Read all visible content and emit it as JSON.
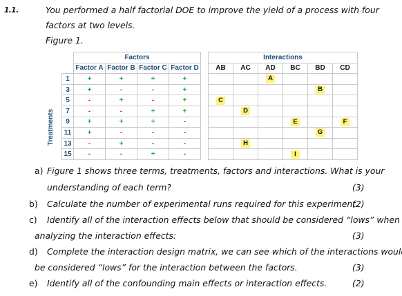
{
  "question_number": "1.1.",
  "intro_line1": "You performed a half factorial DOE to improve the yield of a process with four",
  "intro_line2": "factors at two levels.",
  "figure_label": "Figure 1.",
  "factors_table": {
    "group_header": "Factors",
    "columns": [
      "Factor A",
      "Factor B",
      "Factor C",
      "Factor D"
    ],
    "side_label": "Treatments",
    "rows": [
      {
        "treatment": "1",
        "levels": [
          "+",
          "+",
          "+",
          "+"
        ]
      },
      {
        "treatment": "3",
        "levels": [
          "+",
          "-",
          "-",
          "+"
        ]
      },
      {
        "treatment": "5",
        "levels": [
          "-",
          "+",
          "-",
          "+"
        ]
      },
      {
        "treatment": "7",
        "levels": [
          "-",
          "-",
          "+",
          "+"
        ]
      },
      {
        "treatment": "9",
        "levels": [
          "+",
          "+",
          "+",
          "-"
        ]
      },
      {
        "treatment": "11",
        "levels": [
          "+",
          "-",
          "-",
          "-"
        ]
      },
      {
        "treatment": "13",
        "levels": [
          "-",
          "+",
          "-",
          "-"
        ]
      },
      {
        "treatment": "15",
        "levels": [
          "-",
          "-",
          "+",
          "-"
        ]
      }
    ]
  },
  "interactions_table": {
    "group_header": "Interactions",
    "columns": [
      "AB",
      "AC",
      "AD",
      "BC",
      "BD",
      "CD"
    ],
    "rows": [
      [
        "",
        "",
        "A",
        "",
        "",
        ""
      ],
      [
        "",
        "",
        "",
        "",
        "B",
        ""
      ],
      [
        "C",
        "",
        "",
        "",
        "",
        ""
      ],
      [
        "",
        "D",
        "",
        "",
        "",
        ""
      ],
      [
        "",
        "",
        "",
        "E",
        "",
        "F"
      ],
      [
        "",
        "",
        "",
        "",
        "G",
        ""
      ],
      [
        "",
        "H",
        "",
        "",
        "",
        ""
      ],
      [
        "",
        "",
        "",
        "I",
        "",
        ""
      ]
    ]
  },
  "questions": [
    {
      "label": "a)",
      "line1": "Figure 1 shows three terms, treatments, factors and interactions. What is your",
      "line2": "understanding of each term?",
      "marks": "(3)"
    },
    {
      "label": "b)",
      "line1": "Calculate the number of experimental runs required for this experiment.",
      "marks": "(2)"
    },
    {
      "label": "c)",
      "line1": "Identify all of the interaction effects below that should be considered “lows” when",
      "line2": "analyzing the interaction effects:",
      "marks": "(3)"
    },
    {
      "label": "d)",
      "line1": "Complete the interaction design matrix, we can see which of the interactions would",
      "line2": "be considered “lows” for the interaction between the factors.",
      "marks": "(3)"
    },
    {
      "label": "e)",
      "line1": "Identify all of the confounding main effects or interaction effects.",
      "marks": "(2)"
    }
  ]
}
